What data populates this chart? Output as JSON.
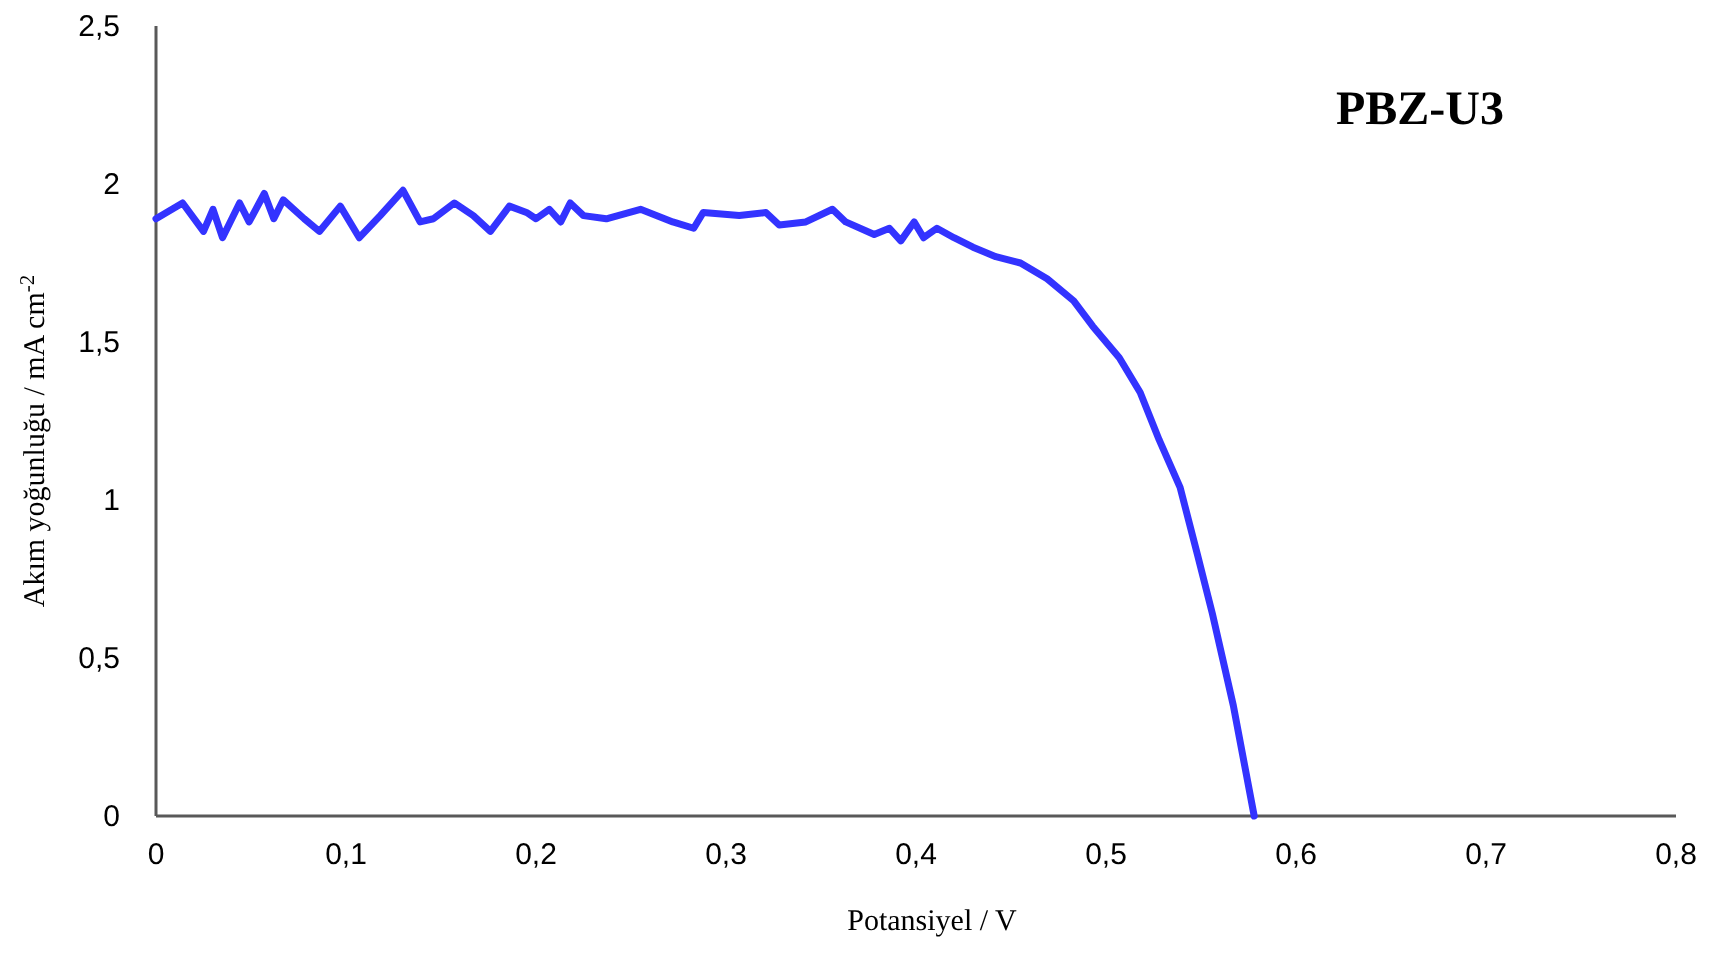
{
  "chart_data": {
    "type": "line",
    "title": "PBZ-U3",
    "xlabel": "Potansiyel / V",
    "ylabel": "Akım yoğunluğu / mA cm$^{-2}$",
    "xlim": [
      0,
      0.8
    ],
    "xticks": [
      0,
      {
        "value": 0.1,
        "label": "0,1"
      },
      {
        "value": 0.2,
        "label": "0,2"
      },
      {
        "value": 0.3,
        "label": "0,3"
      },
      {
        "value": 0.4,
        "label": "0,4"
      },
      {
        "value": 0.5,
        "label": "0,5"
      },
      {
        "value": 0.6,
        "label": "0,6"
      },
      {
        "value": 0.7,
        "label": "0,7"
      },
      {
        "value": 0.8,
        "label": "0,8"
      }
    ],
    "ylim": [
      0,
      2.5
    ],
    "yticks": [
      0,
      {
        "value": 0.5,
        "label": "0,5"
      },
      1,
      {
        "value": 1.5,
        "label": "1,5"
      },
      2,
      {
        "value": 2.5,
        "label": "2,5"
      }
    ],
    "grid": false,
    "marker": "none",
    "line_style": "solid",
    "series": [
      {
        "color": "#3333ff",
        "x": [
          0,
          0.014,
          0.025,
          0.03,
          0.035,
          0.044,
          0.049,
          0.057,
          0.062,
          0.067,
          0.078,
          0.086,
          0.097,
          0.107,
          0.118,
          0.13,
          0.139,
          0.146,
          0.157,
          0.167,
          0.176,
          0.186,
          0.195,
          0.2,
          0.207,
          0.213,
          0.218,
          0.225,
          0.237,
          0.255,
          0.272,
          0.283,
          0.288,
          0.307,
          0.321,
          0.328,
          0.342,
          0.356,
          0.363,
          0.378,
          0.386,
          0.392,
          0.399,
          0.404,
          0.411,
          0.42,
          0.43,
          0.442,
          0.455,
          0.469,
          0.483,
          0.493,
          0.507,
          0.518,
          0.528,
          0.539,
          0.548,
          0.556,
          0.567,
          0.578
        ],
        "values": [
          1.89,
          1.94,
          1.85,
          1.92,
          1.83,
          1.94,
          1.88,
          1.97,
          1.89,
          1.95,
          1.89,
          1.85,
          1.93,
          1.83,
          1.9,
          1.98,
          1.88,
          1.89,
          1.94,
          1.9,
          1.85,
          1.93,
          1.91,
          1.89,
          1.92,
          1.88,
          1.94,
          1.9,
          1.89,
          1.92,
          1.88,
          1.86,
          1.91,
          1.9,
          1.91,
          1.87,
          1.88,
          1.92,
          1.88,
          1.84,
          1.86,
          1.82,
          1.88,
          1.83,
          1.86,
          1.83,
          1.8,
          1.77,
          1.75,
          1.7,
          1.63,
          1.55,
          1.45,
          1.34,
          1.19,
          1.04,
          0.83,
          0.64,
          0.35,
          0
        ]
      }
    ]
  }
}
